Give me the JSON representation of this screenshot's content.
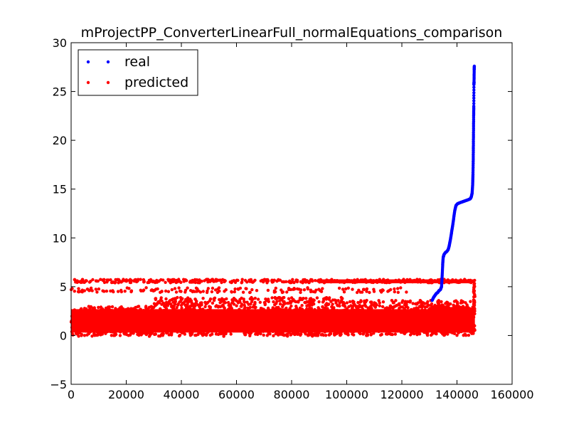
{
  "chart_data": {
    "type": "scatter",
    "title": "mProjectPP_ConverterLinearFull_normalEquations_comparison",
    "xlabel": "",
    "ylabel": "",
    "xlim": [
      0,
      160000
    ],
    "ylim": [
      -5,
      30
    ],
    "xticks": [
      0,
      20000,
      40000,
      60000,
      80000,
      100000,
      120000,
      140000,
      160000
    ],
    "xtick_labels": [
      "0",
      "20000",
      "40000",
      "60000",
      "80000",
      "100000",
      "120000",
      "140000",
      "160000"
    ],
    "yticks": [
      -5,
      0,
      5,
      10,
      15,
      20,
      25,
      30
    ],
    "ytick_labels": [
      "−5",
      "0",
      "5",
      "10",
      "15",
      "20",
      "25",
      "30"
    ],
    "grid": false,
    "legend_position": "top-left",
    "series": [
      {
        "name": "real",
        "color": "#0000ff",
        "marker": "circle",
        "points": [
          [
            131000,
            3.6
          ],
          [
            131500,
            3.9
          ],
          [
            132000,
            4.1
          ],
          [
            132500,
            4.3
          ],
          [
            133000,
            4.4
          ],
          [
            133500,
            4.6
          ],
          [
            134000,
            4.7
          ],
          [
            134400,
            5.0
          ],
          [
            134600,
            6.0
          ],
          [
            134800,
            7.2
          ],
          [
            135000,
            8.0
          ],
          [
            135300,
            8.3
          ],
          [
            135800,
            8.5
          ],
          [
            136300,
            8.6
          ],
          [
            136800,
            8.8
          ],
          [
            137200,
            9.2
          ],
          [
            137600,
            9.8
          ],
          [
            138000,
            10.5
          ],
          [
            138400,
            11.2
          ],
          [
            138800,
            12.0
          ],
          [
            139200,
            12.8
          ],
          [
            139600,
            13.3
          ],
          [
            140200,
            13.5
          ],
          [
            141000,
            13.6
          ],
          [
            142000,
            13.7
          ],
          [
            143000,
            13.8
          ],
          [
            144000,
            13.9
          ],
          [
            144800,
            14.0
          ],
          [
            145200,
            14.2
          ],
          [
            145500,
            14.6
          ],
          [
            145700,
            15.5
          ],
          [
            145800,
            16.5
          ],
          [
            145900,
            18.0
          ],
          [
            145950,
            19.5
          ],
          [
            146000,
            21.0
          ],
          [
            146050,
            22.5
          ],
          [
            146100,
            23.5
          ],
          [
            146150,
            25.7
          ],
          [
            146200,
            26.0
          ],
          [
            146250,
            27.2
          ],
          [
            146300,
            27.6
          ]
        ]
      },
      {
        "name": "predicted",
        "color": "#ff0000",
        "marker": "circle",
        "x_range": [
          0,
          146500
        ],
        "bands": [
          {
            "y_min": 5.4,
            "y_max": 5.8,
            "density": "sparse-to-dense"
          },
          {
            "y_min": 4.4,
            "y_max": 4.9,
            "density": "sparse"
          },
          {
            "y_min": 0.0,
            "y_max": 3.1,
            "density": "dense"
          },
          {
            "y_min": 0.8,
            "y_max": 1.2,
            "density": "dense-tail"
          }
        ]
      }
    ]
  }
}
